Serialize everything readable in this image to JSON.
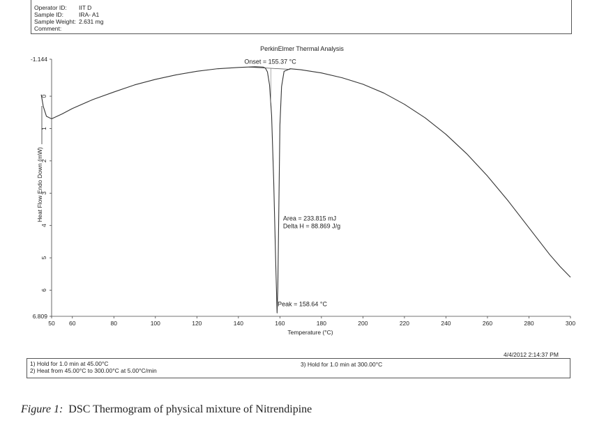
{
  "header": {
    "rows": [
      {
        "key": "Operator ID:",
        "value": "IIT D"
      },
      {
        "key": "Sample ID:",
        "value": "IRA- A1"
      },
      {
        "key": "Sample Weight:",
        "value": "2.631 mg"
      },
      {
        "key": "Comment:",
        "value": ""
      }
    ]
  },
  "footer": {
    "steps": [
      "1)  Hold for 1.0 min at 45.00°C",
      "2)  Heat from 45.00°C to 300.00°C at 5.00°C/min",
      "3)  Hold for 1.0 min at 300.00°C"
    ],
    "timestamp": "4/4/2012 2:14:37 PM"
  },
  "caption": {
    "label": "Figure 1:",
    "text": "DSC Thermogram of physical mixture of Nitrendipine"
  },
  "chart_data": {
    "type": "line",
    "title": "PerkinElmer Thermal Analysis",
    "xlabel": "Temperature (°C)",
    "ylabel": "Heat Flow Endo Down (mW)",
    "xlim": [
      50,
      300
    ],
    "ylim": [
      -1.144,
      6.809
    ],
    "y_inverted": true,
    "x_ticks": [
      50,
      60,
      80,
      100,
      120,
      140,
      160,
      180,
      200,
      220,
      240,
      260,
      280,
      300
    ],
    "y_ticks": [
      "-1.144",
      "0",
      "1",
      "2",
      "3",
      "4",
      "5",
      "6",
      "6.809"
    ],
    "series": [
      {
        "color": "#333333",
        "points": [
          [
            45,
            -0.05
          ],
          [
            46,
            0.32
          ],
          [
            47.5,
            0.62
          ],
          [
            50,
            0.7
          ],
          [
            55,
            0.55
          ],
          [
            60,
            0.38
          ],
          [
            70,
            0.1
          ],
          [
            80,
            -0.13
          ],
          [
            90,
            -0.35
          ],
          [
            100,
            -0.52
          ],
          [
            110,
            -0.66
          ],
          [
            120,
            -0.77
          ],
          [
            130,
            -0.85
          ],
          [
            140,
            -0.89
          ],
          [
            148,
            -0.91
          ],
          [
            152,
            -0.9
          ],
          [
            153,
            -0.87
          ],
          [
            154,
            -0.75
          ],
          [
            155,
            -0.35
          ],
          [
            156,
            0.6
          ],
          [
            157,
            2.6
          ],
          [
            158,
            5.2
          ],
          [
            158.64,
            6.7
          ],
          [
            159,
            5.9
          ],
          [
            159.5,
            3.4
          ],
          [
            160,
            0.9
          ],
          [
            160.8,
            -0.3
          ],
          [
            162,
            -0.77
          ],
          [
            165,
            -0.85
          ],
          [
            170,
            -0.82
          ],
          [
            180,
            -0.72
          ],
          [
            190,
            -0.57
          ],
          [
            200,
            -0.37
          ],
          [
            210,
            -0.1
          ],
          [
            220,
            0.25
          ],
          [
            230,
            0.67
          ],
          [
            240,
            1.18
          ],
          [
            250,
            1.78
          ],
          [
            260,
            2.47
          ],
          [
            270,
            3.24
          ],
          [
            280,
            4.07
          ],
          [
            290,
            4.9
          ],
          [
            295,
            5.27
          ],
          [
            300,
            5.6
          ]
        ]
      }
    ],
    "baseline_segments": [
      [
        [
          145,
          -0.9
        ],
        [
          165,
          -0.83
        ]
      ]
    ],
    "annotations": [
      {
        "text": "Onset = 155.37 °C",
        "x": 155.37,
        "y": -1.0
      },
      {
        "text": "Area = 233.815 mJ",
        "x": 161.5,
        "y": 3.85
      },
      {
        "text": "Delta H = 88.869 J/g",
        "x": 161.5,
        "y": 4.08
      },
      {
        "text": "Peak = 158.64 °C",
        "x": 158.9,
        "y": 6.5
      }
    ],
    "grid": false,
    "legend": "none"
  }
}
